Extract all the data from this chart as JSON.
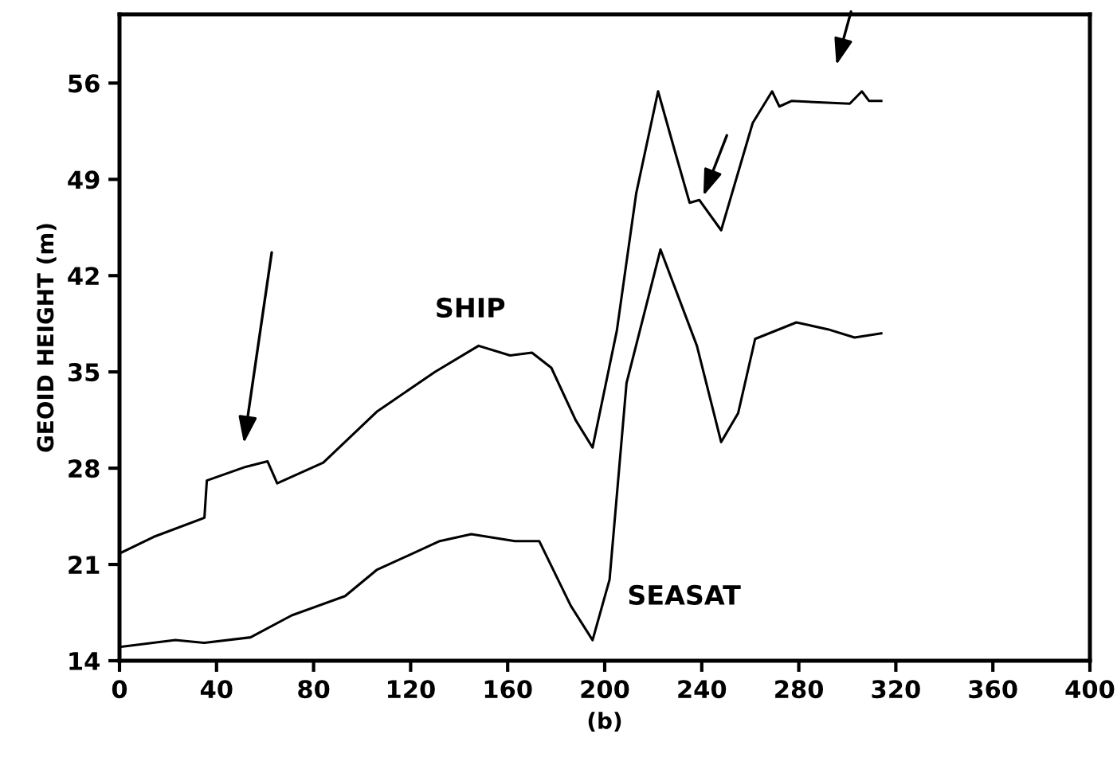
{
  "chart_data": {
    "type": "line",
    "xlabel": "(b)",
    "ylabel": "GEOID HEIGHT (m)",
    "xlim": [
      0,
      400
    ],
    "xticks": [
      0,
      40,
      80,
      120,
      160,
      200,
      240,
      280,
      320,
      360,
      400
    ],
    "ylim": [
      14,
      61
    ],
    "yticks": [
      14,
      21,
      28,
      35,
      42,
      49,
      56
    ],
    "grid": false,
    "legend": false,
    "marker": "none",
    "line_style": "solid",
    "series": [
      {
        "name": "SHIP",
        "color": "#000000",
        "x": [
          0,
          14,
          35,
          36,
          52,
          61,
          65,
          84,
          106,
          130,
          148,
          161,
          170,
          178,
          188,
          195,
          205,
          213,
          222,
          229,
          235,
          239,
          248,
          261,
          269,
          272,
          277,
          301,
          306,
          309,
          314
        ],
        "values": [
          21.8,
          23.0,
          24.4,
          27.1,
          28.1,
          28.5,
          26.9,
          28.4,
          32.1,
          35.0,
          36.9,
          36.2,
          36.4,
          35.3,
          31.5,
          29.5,
          38.0,
          48.0,
          55.4,
          51.0,
          47.3,
          47.5,
          45.3,
          53.1,
          55.4,
          54.3,
          54.7,
          54.5,
          55.4,
          54.7,
          54.7
        ]
      },
      {
        "name": "SEASAT",
        "color": "#000000",
        "x": [
          0,
          23,
          35,
          54,
          71,
          93,
          106,
          132,
          145,
          163,
          173,
          186,
          195,
          202,
          209,
          223,
          238,
          248,
          255,
          262,
          279,
          292,
          303,
          314
        ],
        "values": [
          15.0,
          15.5,
          15.3,
          15.7,
          17.3,
          18.7,
          20.6,
          22.7,
          23.2,
          22.7,
          22.7,
          18.0,
          15.5,
          19.9,
          34.2,
          43.9,
          36.9,
          29.9,
          32.0,
          37.4,
          38.6,
          38.1,
          37.5,
          37.8
        ]
      }
    ]
  }
}
